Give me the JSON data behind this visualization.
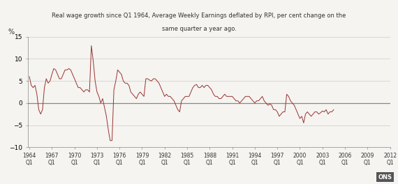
{
  "title_line1": "Real wage growth since Q1 1964, Average Weekly Earnings deflated by RPI, per cent change on the",
  "title_line2": "same quarter a year ago.",
  "ylabel": "%",
  "ylim": [
    -10,
    15
  ],
  "yticks": [
    -10,
    -5,
    0,
    5,
    10,
    15
  ],
  "x_tick_years": [
    1964,
    1967,
    1970,
    1973,
    1976,
    1979,
    1982,
    1985,
    1988,
    1991,
    1994,
    1997,
    2000,
    2003,
    2006,
    2009,
    2012
  ],
  "line_color": "#993333",
  "background_color": "#f5f4f0",
  "grid_color": "#cccccc",
  "zero_line_color": "#888888",
  "ons_label": "ONS",
  "start_year": 1964.0,
  "values": [
    6.0,
    4.0,
    3.5,
    4.0,
    2.0,
    -1.5,
    -2.5,
    -1.5,
    3.5,
    5.5,
    4.5,
    5.0,
    6.5,
    7.8,
    7.5,
    6.5,
    5.5,
    5.5,
    6.5,
    7.5,
    7.5,
    7.8,
    7.5,
    6.5,
    5.5,
    4.5,
    3.5,
    3.5,
    3.0,
    2.5,
    3.0,
    3.0,
    2.5,
    13.0,
    9.5,
    5.0,
    2.5,
    1.5,
    0.0,
    1.0,
    -1.0,
    -3.0,
    -6.0,
    -8.5,
    -8.5,
    3.0,
    5.0,
    7.5,
    7.0,
    6.5,
    5.0,
    4.5,
    4.5,
    4.0,
    2.5,
    2.0,
    1.5,
    1.0,
    2.0,
    2.5,
    2.0,
    1.5,
    5.5,
    5.5,
    5.2,
    5.0,
    5.5,
    5.5,
    5.0,
    4.5,
    3.5,
    2.5,
    1.5,
    2.0,
    1.5,
    1.5,
    1.0,
    0.5,
    -0.5,
    -1.5,
    -2.0,
    0.5,
    1.0,
    1.5,
    1.5,
    1.5,
    2.5,
    3.5,
    4.0,
    4.2,
    3.5,
    3.5,
    4.0,
    3.5,
    4.0,
    4.0,
    3.5,
    3.0,
    2.0,
    1.5,
    1.5,
    1.0,
    1.0,
    1.5,
    2.0,
    1.5,
    1.5,
    1.5,
    1.5,
    1.0,
    0.5,
    0.5,
    0.0,
    0.5,
    1.0,
    1.5,
    1.5,
    1.5,
    1.0,
    0.5,
    0.0,
    0.5,
    0.5,
    1.0,
    1.5,
    0.5,
    0.0,
    -0.5,
    -0.2,
    -0.5,
    -1.5,
    -1.5,
    -2.0,
    -3.0,
    -2.5,
    -2.0,
    -2.0,
    2.0,
    1.5,
    0.5,
    0.0,
    -0.5,
    -1.5,
    -2.5,
    -3.5,
    -3.0,
    -4.5,
    -2.5,
    -2.0,
    -2.5,
    -3.0,
    -2.5,
    -2.0,
    -2.0,
    -2.5,
    -2.2,
    -1.8,
    -2.0,
    -1.5,
    -2.5,
    -2.0,
    -2.0,
    -1.5
  ]
}
